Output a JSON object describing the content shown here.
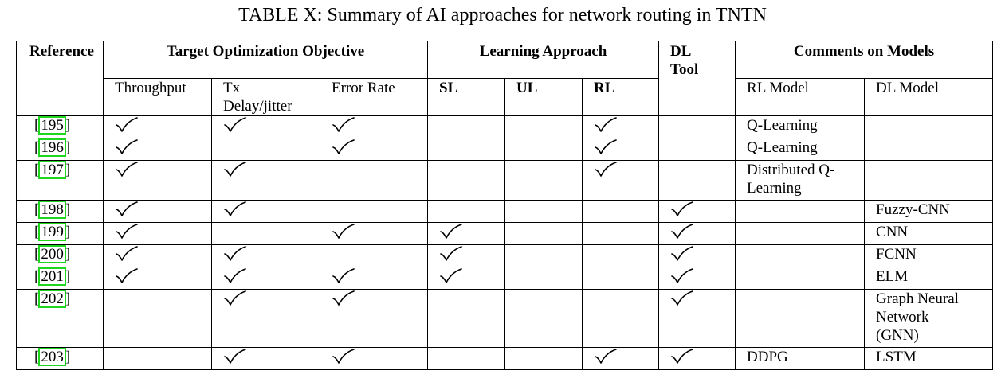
{
  "caption": "TABLE X: Summary of AI approaches for network routing in TNTN",
  "headers": {
    "reference": "Reference",
    "target_objective": "Target Optimization Objective",
    "learning_approach": "Learning Approach",
    "dl_tool_line1": "DL",
    "dl_tool_line2": "Tool",
    "comments": "Comments on Models",
    "throughput": "Throughput",
    "tx_line1": "Tx",
    "tx_line2": "Delay/jitter",
    "error_rate": "Error Rate",
    "sl": "SL",
    "ul": "UL",
    "rl": "RL",
    "rl_model": "RL Model",
    "dl_model": "DL Model"
  },
  "rows": [
    {
      "ref_open": "[",
      "ref_num": "195",
      "ref_close": "]",
      "throughput": true,
      "tx": true,
      "error": true,
      "sl": false,
      "ul": false,
      "rl": true,
      "dl_tool": false,
      "rl_model": "Q-Learning",
      "dl_model": ""
    },
    {
      "ref_open": "[",
      "ref_num": "196",
      "ref_close": "]",
      "throughput": true,
      "tx": false,
      "error": true,
      "sl": false,
      "ul": false,
      "rl": true,
      "dl_tool": false,
      "rl_model": "Q-Learning",
      "dl_model": ""
    },
    {
      "ref_open": "[",
      "ref_num": "197",
      "ref_close": "]",
      "throughput": true,
      "tx": true,
      "error": false,
      "sl": false,
      "ul": false,
      "rl": true,
      "dl_tool": false,
      "rl_model_l1": "Distributed Q-",
      "rl_model_l2": "Learning",
      "dl_model": ""
    },
    {
      "ref_open": "[",
      "ref_num": "198",
      "ref_close": "]",
      "throughput": true,
      "tx": true,
      "error": false,
      "sl": false,
      "ul": false,
      "rl": false,
      "dl_tool": true,
      "rl_model": "",
      "dl_model": "Fuzzy-CNN"
    },
    {
      "ref_open": "[",
      "ref_num": "199",
      "ref_close": "]",
      "throughput": true,
      "tx": false,
      "error": true,
      "sl": true,
      "ul": false,
      "rl": false,
      "dl_tool": true,
      "rl_model": "",
      "dl_model": "CNN"
    },
    {
      "ref_open": "[",
      "ref_num": "200",
      "ref_close": "]",
      "throughput": true,
      "tx": true,
      "error": false,
      "sl": true,
      "ul": false,
      "rl": false,
      "dl_tool": true,
      "rl_model": "",
      "dl_model": "FCNN"
    },
    {
      "ref_open": "[",
      "ref_num": "201",
      "ref_close": "]",
      "throughput": true,
      "tx": true,
      "error": true,
      "sl": true,
      "ul": false,
      "rl": false,
      "dl_tool": true,
      "rl_model": "",
      "dl_model": "ELM"
    },
    {
      "ref_open": "[",
      "ref_num": "202",
      "ref_close": "]",
      "throughput": false,
      "tx": true,
      "error": true,
      "sl": false,
      "ul": false,
      "rl": false,
      "dl_tool": true,
      "rl_model": "",
      "dl_model_l1": "Graph Neural",
      "dl_model_l2": "Network",
      "dl_model_l3": "(GNN)"
    },
    {
      "ref_open": "[",
      "ref_num": "203",
      "ref_close": "]",
      "throughput": false,
      "tx": true,
      "error": true,
      "sl": false,
      "ul": false,
      "rl": true,
      "dl_tool": true,
      "rl_model": "DDPG",
      "dl_model": "LSTM"
    }
  ],
  "colors": {
    "rule": "#000000",
    "citation_box": "#1ed61e"
  },
  "icons": {
    "check": "checkmark-icon"
  }
}
